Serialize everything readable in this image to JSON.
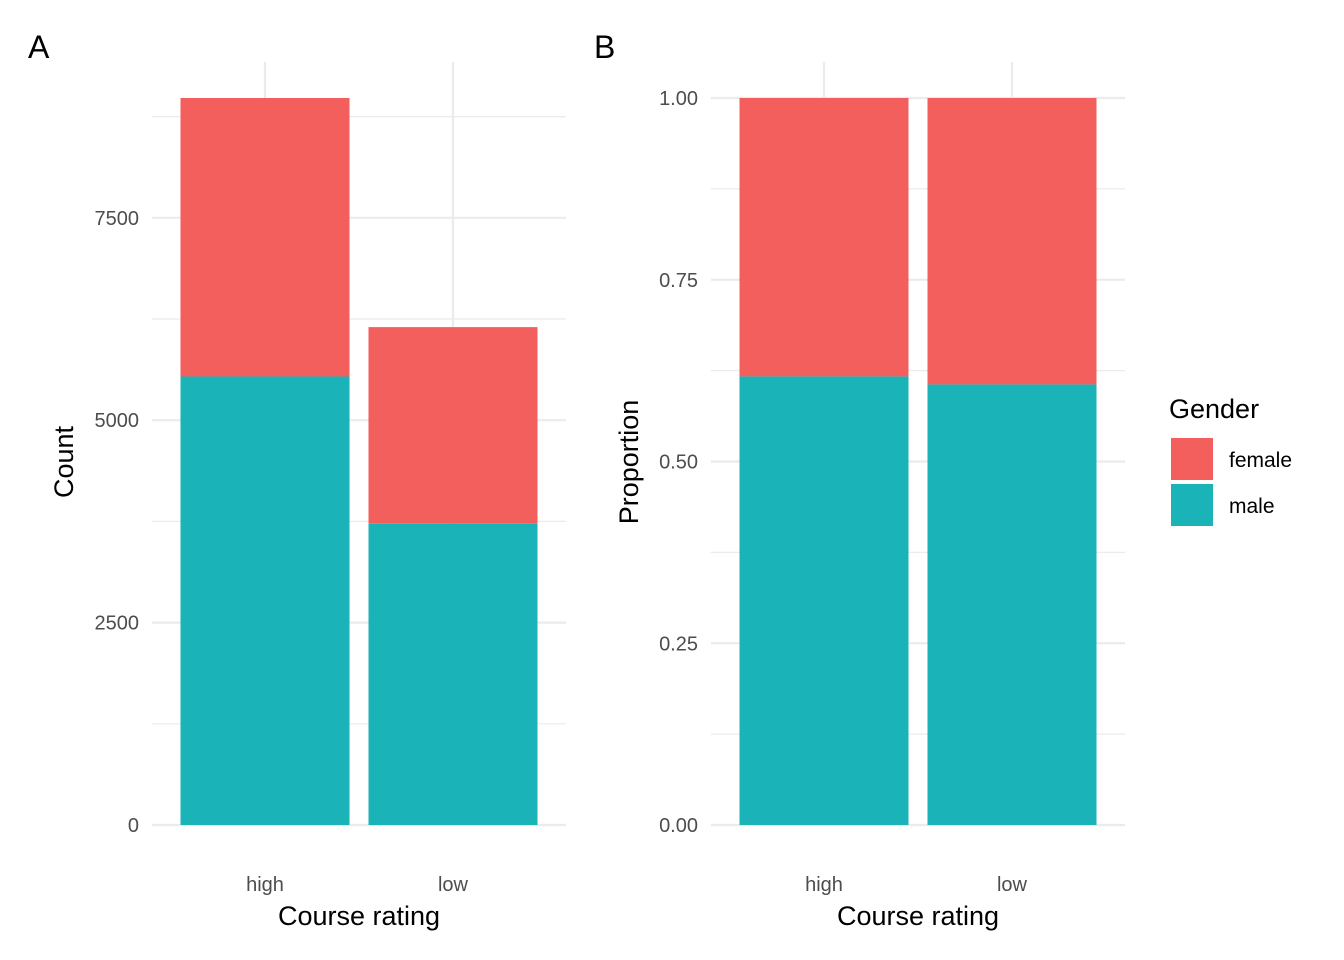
{
  "colors": {
    "female": "#F35F5C",
    "male": "#19B3B8",
    "grid": "#EBEBEB"
  },
  "legend": {
    "title": "Gender",
    "items": [
      {
        "label": "female",
        "color": "#F35F5C"
      },
      {
        "label": "male",
        "color": "#19B3B8"
      }
    ],
    "placement": "right"
  },
  "chart_data": [
    {
      "type": "bar",
      "stacked": true,
      "tag": "A",
      "xlabel": "Course rating",
      "ylabel": "Count",
      "categories": [
        "high",
        "low"
      ],
      "series": [
        {
          "name": "male",
          "values": [
            5540,
            3720
          ]
        },
        {
          "name": "female",
          "values": [
            3440,
            2430
          ]
        }
      ],
      "ylim": [
        0,
        8980
      ],
      "yticks": [
        0,
        2500,
        5000,
        7500
      ],
      "ytick_labels": [
        "0",
        "2500",
        "5000",
        "7500"
      ],
      "grid": true
    },
    {
      "type": "bar",
      "stacked": true,
      "tag": "B",
      "xlabel": "Course rating",
      "ylabel": "Proportion",
      "categories": [
        "high",
        "low"
      ],
      "series": [
        {
          "name": "male",
          "values": [
            0.617,
            0.606
          ]
        },
        {
          "name": "female",
          "values": [
            0.383,
            0.394
          ]
        }
      ],
      "ylim": [
        0,
        1
      ],
      "yticks": [
        0,
        0.25,
        0.5,
        0.75,
        1
      ],
      "ytick_labels": [
        "0.00",
        "0.25",
        "0.50",
        "0.75",
        "1.00"
      ],
      "grid": true
    }
  ]
}
